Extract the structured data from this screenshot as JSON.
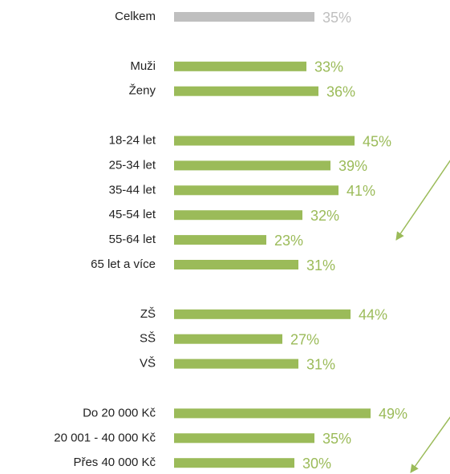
{
  "chart_data": {
    "type": "bar",
    "orientation": "horizontal",
    "categories": [
      "Celkem",
      null,
      "Muži",
      "Ženy",
      null,
      "18-24 let",
      "25-34 let",
      "35-44 let",
      "45-54 let",
      "55-64 let",
      "65 let a více",
      null,
      "ZŠ",
      "SŠ",
      "VŠ",
      null,
      "Do 20 000 Kč",
      "20 001 - 40 000 Kč",
      "Přes 40 000 Kč"
    ],
    "values": [
      35,
      null,
      33,
      36,
      null,
      45,
      39,
      41,
      32,
      23,
      31,
      null,
      44,
      27,
      31,
      null,
      49,
      35,
      30
    ],
    "value_labels": [
      "35%",
      null,
      "33%",
      "36%",
      null,
      "45%",
      "39%",
      "41%",
      "32%",
      "23%",
      "31%",
      null,
      "44%",
      "27%",
      "31%",
      null,
      "49%",
      "35%",
      "30%"
    ],
    "colors": [
      "#bfbfbf",
      null,
      "#9bbb59",
      "#9bbb59",
      null,
      "#9bbb59",
      "#9bbb59",
      "#9bbb59",
      "#9bbb59",
      "#9bbb59",
      "#9bbb59",
      null,
      "#9bbb59",
      "#9bbb59",
      "#9bbb59",
      null,
      "#9bbb59",
      "#9bbb59",
      "#9bbb59"
    ]
  }
}
